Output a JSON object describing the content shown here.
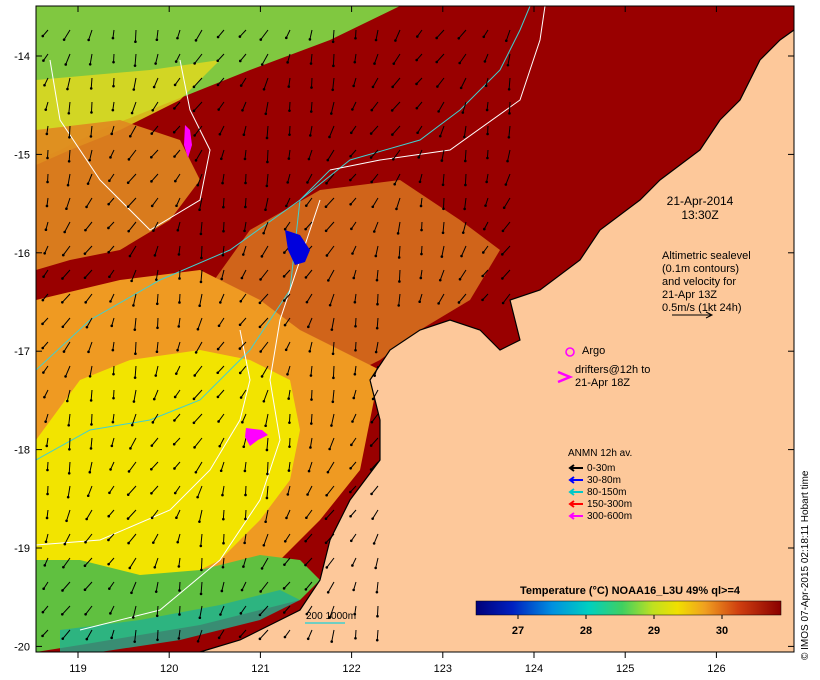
{
  "map": {
    "lon_ticks": [
      "119",
      "120",
      "121",
      "122",
      "123",
      "124",
      "125",
      "126"
    ],
    "lat_ticks": [
      "-14",
      "-15",
      "-16",
      "-17",
      "-18",
      "-19",
      "-20"
    ],
    "colors": {
      "land": "#fdc89a",
      "sea_hot": "#990000",
      "sea_warm": "#d45a10",
      "sea_orange": "#f0a020",
      "sea_yellow": "#f2e800",
      "sea_green": "#80d040",
      "sea_cool": "#20c090",
      "contour_white": "#ffffff",
      "contour_cyan": "#40d0d0"
    }
  },
  "annotations": {
    "date_line1": "21-Apr-2014",
    "date_line2": "13:30Z",
    "alt_line1": "Altimetric sealevel",
    "alt_line2": "(0.1m contours)",
    "alt_line3": "and velocity for",
    "alt_line4": "21-Apr 13Z",
    "alt_line5": "0.5m/s (1kt 24h)",
    "argo_label": "Argo",
    "drifter_line1": "drifters@12h to",
    "drifter_line2": "21-Apr 18Z",
    "isobath_label": "200  1000m"
  },
  "legend": {
    "title": "ANMN 12h av.",
    "items": [
      {
        "label": "0-30m",
        "color": "#000000"
      },
      {
        "label": "30-80m",
        "color": "#0000ff"
      },
      {
        "label": "80-150m",
        "color": "#00c8c8"
      },
      {
        "label": "150-300m",
        "color": "#ff0000"
      },
      {
        "label": "300-600m",
        "color": "#ff00ff"
      }
    ]
  },
  "colorbar": {
    "title": "Temperature (°C) NOAA16_L3U 49% ql>=4",
    "ticks": [
      "27",
      "28",
      "29",
      "30"
    ]
  },
  "credit": "© IMOS 07-Apr-2015 02:18:11 Hobart time"
}
